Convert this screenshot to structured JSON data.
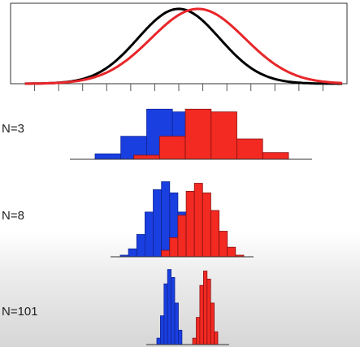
{
  "chart_data": [
    {
      "type": "line",
      "panel": "density-curves",
      "xlim": [
        0,
        14
      ],
      "ylim": [
        0,
        1.0
      ],
      "x_ticks": [
        1,
        2,
        3,
        4,
        5,
        6,
        7,
        8,
        9,
        10,
        11,
        12,
        13
      ],
      "grid": false,
      "series": [
        {
          "color": "#000000",
          "mean": 7.0,
          "sd": 1.7,
          "peak": 0.93
        },
        {
          "color": "#e8262a",
          "mean": 7.8,
          "sd": 1.95,
          "peak": 0.93
        }
      ]
    },
    {
      "type": "bar",
      "panel": "histogram",
      "label": "N=3",
      "ylim": [
        0,
        60
      ],
      "series": [
        {
          "color": "#1a3fe0",
          "bins": [
            [
              1,
              3,
              4
            ],
            [
              3,
              5,
              17
            ],
            [
              5,
              7,
              37
            ],
            [
              7,
              9,
              35
            ],
            [
              9,
              10,
              15
            ],
            [
              10,
              12,
              5
            ]
          ]
        },
        {
          "color": "#f22a22",
          "bins": [
            [
              4,
              6,
              3
            ],
            [
              6,
              8,
              17
            ],
            [
              8,
              10,
              37
            ],
            [
              10,
              12,
              35
            ],
            [
              12,
              14,
              15
            ],
            [
              14,
              16,
              5
            ]
          ]
        }
      ]
    },
    {
      "type": "bar",
      "panel": "histogram",
      "label": "N=8",
      "ylim": [
        0,
        60
      ],
      "series": [
        {
          "color": "#1a3fe0",
          "bins": [
            [
              5,
              6,
              1
            ],
            [
              6,
              7,
              5
            ],
            [
              7,
              8,
              14
            ],
            [
              8,
              9,
              28
            ],
            [
              9,
              10,
              42
            ],
            [
              10,
              11,
              47
            ],
            [
              11,
              12,
              40
            ],
            [
              12,
              13,
              28
            ],
            [
              13,
              14,
              13
            ],
            [
              14,
              15,
              4
            ]
          ]
        },
        {
          "color": "#f22a22",
          "bins": [
            [
              10,
              11,
              4
            ],
            [
              11,
              12,
              12
            ],
            [
              12,
              13,
              26
            ],
            [
              13,
              14,
              41
            ],
            [
              14,
              15,
              46
            ],
            [
              15,
              16,
              40
            ],
            [
              16,
              17,
              29
            ],
            [
              17,
              18,
              16
            ],
            [
              18,
              19,
              6
            ],
            [
              19,
              20,
              1
            ]
          ]
        }
      ]
    },
    {
      "type": "bar",
      "panel": "histogram",
      "label": "N=101",
      "ylim": [
        0,
        60
      ],
      "series": [
        {
          "color": "#1a3fe0",
          "bins": [
            [
              60,
              61,
              4
            ],
            [
              61,
              62,
              18
            ],
            [
              62,
              63,
              38
            ],
            [
              63,
              64,
              47
            ],
            [
              64,
              65,
              42
            ],
            [
              65,
              66,
              26
            ],
            [
              66,
              67,
              9
            ]
          ]
        },
        {
          "color": "#f22a22",
          "bins": [
            [
              70,
              71,
              4
            ],
            [
              71,
              72,
              17
            ],
            [
              72,
              73,
              37
            ],
            [
              73,
              74,
              46
            ],
            [
              74,
              75,
              41
            ],
            [
              75,
              76,
              26
            ],
            [
              76,
              77,
              8
            ]
          ]
        }
      ]
    }
  ]
}
